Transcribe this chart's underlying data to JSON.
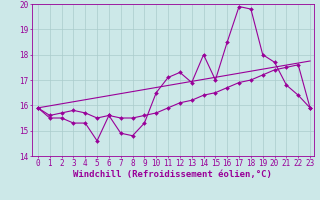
{
  "xlabel": "Windchill (Refroidissement éolien,°C)",
  "background_color": "#cce8e8",
  "line_color": "#990099",
  "grid_color": "#aacccc",
  "xlim": [
    -0.5,
    23.3
  ],
  "ylim": [
    14.0,
    20.0
  ],
  "yticks": [
    14,
    15,
    16,
    17,
    18,
    19,
    20
  ],
  "xticks": [
    0,
    1,
    2,
    3,
    4,
    5,
    6,
    7,
    8,
    9,
    10,
    11,
    12,
    13,
    14,
    15,
    16,
    17,
    18,
    19,
    20,
    21,
    22,
    23
  ],
  "series1_x": [
    0,
    1,
    2,
    3,
    4,
    5,
    6,
    7,
    8,
    9,
    10,
    11,
    12,
    13,
    14,
    15,
    16,
    17,
    18,
    19,
    20,
    21,
    22,
    23
  ],
  "series1_y": [
    15.9,
    15.5,
    15.5,
    15.3,
    15.3,
    14.6,
    15.6,
    14.9,
    14.8,
    15.3,
    16.5,
    17.1,
    17.3,
    16.9,
    18.0,
    17.0,
    18.5,
    19.9,
    19.8,
    18.0,
    17.7,
    16.8,
    16.4,
    15.9
  ],
  "series2_x": [
    0,
    1,
    2,
    3,
    4,
    5,
    6,
    7,
    8,
    9,
    10,
    11,
    12,
    13,
    14,
    15,
    16,
    17,
    18,
    19,
    20,
    21,
    22,
    23
  ],
  "series2_y": [
    15.9,
    15.6,
    15.7,
    15.8,
    15.7,
    15.5,
    15.6,
    15.5,
    15.5,
    15.6,
    15.7,
    15.9,
    16.1,
    16.2,
    16.4,
    16.5,
    16.7,
    16.9,
    17.0,
    17.2,
    17.4,
    17.5,
    17.6,
    15.9
  ],
  "series3_x": [
    0,
    23
  ],
  "series3_y": [
    15.9,
    17.75
  ],
  "tick_fontsize": 5.5,
  "xlabel_fontsize": 6.5,
  "marker": "D",
  "marker_size": 2.0,
  "linewidth1": 0.8,
  "linewidth2": 0.8,
  "linewidth3": 0.8
}
